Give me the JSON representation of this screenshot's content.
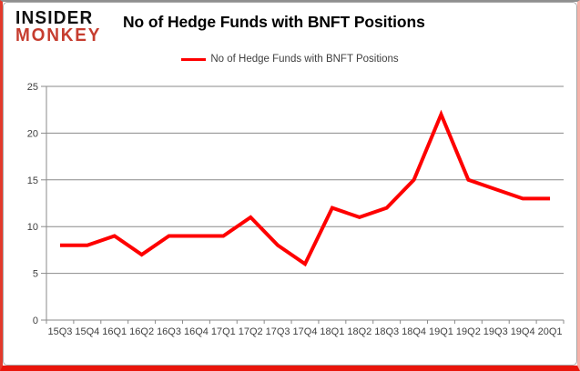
{
  "brand": {
    "line1": "INSIDER",
    "line2": "MONKEY",
    "accent_color": "#c63d2f"
  },
  "title": "No of Hedge Funds with BNFT Positions",
  "legend": {
    "label": "No of Hedge Funds with BNFT Positions"
  },
  "chart_data": {
    "type": "line",
    "title": "No of Hedge Funds with BNFT Positions",
    "categories": [
      "15Q3",
      "15Q4",
      "16Q1",
      "16Q2",
      "16Q3",
      "16Q4",
      "17Q1",
      "17Q2",
      "17Q3",
      "17Q4",
      "18Q1",
      "18Q2",
      "18Q3",
      "18Q4",
      "19Q1",
      "19Q2",
      "19Q3",
      "19Q4",
      "20Q1"
    ],
    "series": [
      {
        "name": "No of Hedge Funds with BNFT Positions",
        "color": "#fe0000",
        "values": [
          8,
          8,
          9,
          7,
          9,
          9,
          9,
          11,
          8,
          6,
          12,
          11,
          12,
          15,
          22,
          15,
          14,
          13,
          13
        ]
      }
    ],
    "ylim": [
      0,
      25
    ],
    "yticks": [
      0,
      5,
      10,
      15,
      20,
      25
    ],
    "xlabel": "",
    "ylabel": "",
    "grid": true,
    "legend_position": "top-center",
    "line_width": 4,
    "colors": {
      "grid": "#8a8a8a",
      "axis": "#8a8a8a",
      "tick_label": "#3f3f3f"
    }
  }
}
